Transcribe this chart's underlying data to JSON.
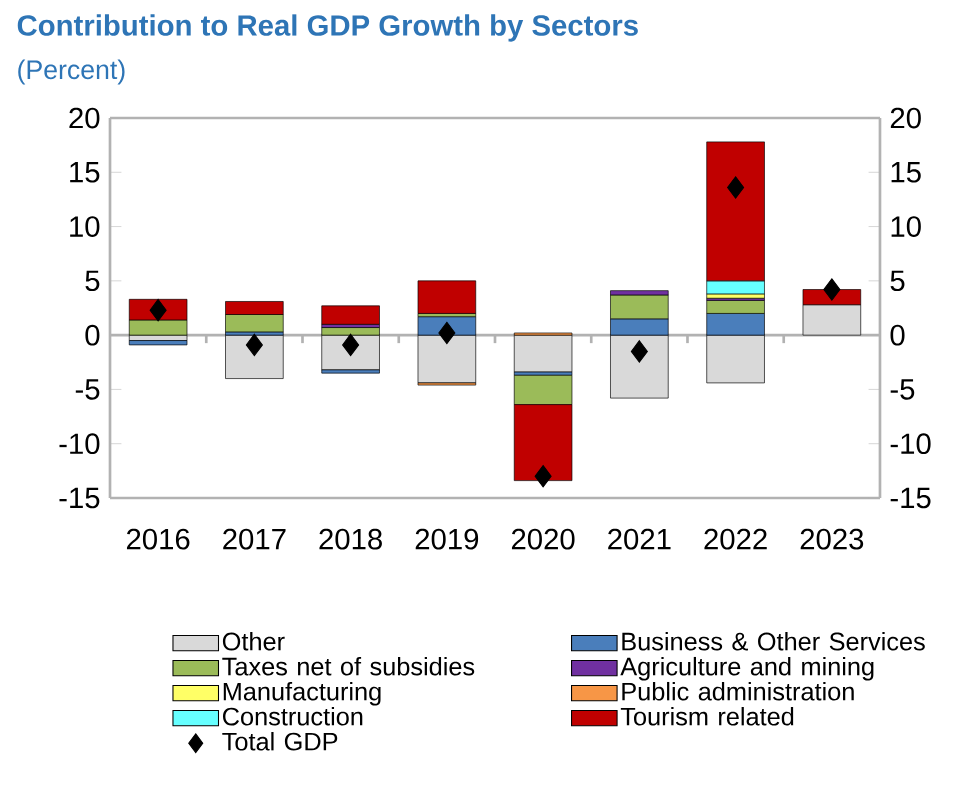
{
  "chart_data": {
    "type": "bar",
    "stacked": true,
    "title": "Contribution to Real GDP Growth by Sectors",
    "subtitle": "(Percent)",
    "categories": [
      "2016",
      "2017",
      "2018",
      "2019",
      "2020",
      "2021",
      "2022",
      "2023"
    ],
    "series": [
      {
        "name": "Other",
        "color": "#d9d9d9",
        "values": [
          -0.5,
          -4.0,
          -3.2,
          -4.4,
          -3.4,
          -5.8,
          -4.4,
          2.8
        ]
      },
      {
        "name": "Business & Other Services",
        "color": "#4a7ebb",
        "values": [
          -0.4,
          0.3,
          -0.3,
          1.7,
          -0.3,
          1.5,
          2.0,
          0
        ]
      },
      {
        "name": "Taxes net of subsidies",
        "color": "#9bbb59",
        "values": [
          1.4,
          1.6,
          0.7,
          0.3,
          -2.7,
          2.2,
          1.2,
          0
        ]
      },
      {
        "name": "Agriculture and mining",
        "color": "#7030a0",
        "values": [
          0,
          0,
          0.3,
          0,
          0,
          0.4,
          0.2,
          0
        ]
      },
      {
        "name": "Manufacturing",
        "color": "#ffff66",
        "values": [
          0,
          0,
          0,
          0,
          0,
          0,
          0.4,
          0
        ]
      },
      {
        "name": "Public administration",
        "color": "#f79646",
        "values": [
          0,
          0,
          0,
          -0.2,
          0.2,
          0,
          0,
          0
        ]
      },
      {
        "name": "Construction",
        "color": "#66ffff",
        "values": [
          0,
          0,
          0,
          0,
          0,
          0,
          1.2,
          0
        ]
      },
      {
        "name": "Tourism related",
        "color": "#c00000",
        "values": [
          1.9,
          1.2,
          1.7,
          3.0,
          -7.0,
          0,
          12.8,
          1.4
        ]
      },
      {
        "name": "Total GDP",
        "type": "scatter",
        "marker": "diamond",
        "color": "#000000",
        "values": [
          2.3,
          -0.9,
          -0.9,
          0.2,
          -13.0,
          -1.5,
          13.6,
          4.2
        ]
      }
    ],
    "ylim": [
      -15,
      20
    ],
    "yticks": [
      -15,
      -10,
      -5,
      0,
      5,
      10,
      15,
      20
    ],
    "y2lim": [
      -15,
      20
    ],
    "y2ticks": [
      -15,
      -10,
      -5,
      0,
      5,
      10,
      15,
      20
    ],
    "legend": "bottom"
  }
}
